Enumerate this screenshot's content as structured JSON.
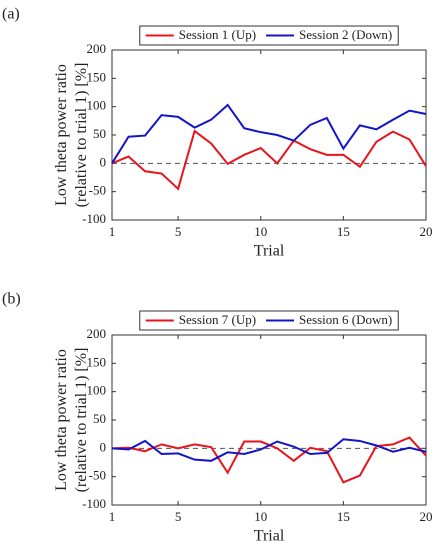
{
  "chart_data": [
    {
      "panel_label": "(a)",
      "type": "line",
      "x": [
        1,
        2,
        3,
        4,
        5,
        6,
        7,
        8,
        9,
        10,
        11,
        12,
        13,
        14,
        15,
        16,
        17,
        18,
        19,
        20
      ],
      "series": [
        {
          "name": "Session 1 (Up)",
          "color": "#e8141c",
          "values": [
            0,
            12,
            -14,
            -18,
            -45,
            57,
            35,
            -1,
            15,
            27,
            0,
            40,
            25,
            15,
            15,
            -6,
            38,
            56,
            42,
            -5
          ]
        },
        {
          "name": "Session 2 (Down)",
          "color": "#1414c8",
          "values": [
            0,
            47,
            49,
            85,
            82,
            63,
            77,
            103,
            62,
            55,
            50,
            40,
            68,
            80,
            26,
            67,
            60,
            77,
            93,
            87
          ]
        }
      ],
      "xlim": [
        1,
        20
      ],
      "xticks": [
        1,
        5,
        10,
        15,
        20
      ],
      "ylim": [
        -100,
        200
      ],
      "yticks": [
        -100,
        -50,
        0,
        50,
        100,
        150,
        200
      ],
      "xlabel": "Trial",
      "ylabel": [
        "Low theta power ratio",
        "(relative to trial 1) [%]"
      ],
      "hline": 0,
      "legend": "top"
    },
    {
      "panel_label": "(b)",
      "type": "line",
      "x": [
        1,
        2,
        3,
        4,
        5,
        6,
        7,
        8,
        9,
        10,
        11,
        12,
        13,
        14,
        15,
        16,
        17,
        18,
        19,
        20
      ],
      "series": [
        {
          "name": "Session 7 (Up)",
          "color": "#e8141c",
          "values": [
            0,
            1,
            -5,
            7,
            0,
            7,
            2,
            -43,
            12,
            12,
            0,
            -22,
            1,
            -5,
            -60,
            -48,
            4,
            7,
            19,
            -13
          ]
        },
        {
          "name": "Session 6 (Down)",
          "color": "#1414c8",
          "values": [
            0,
            -2,
            13,
            -10,
            -9,
            -20,
            -22,
            -7,
            -10,
            -2,
            12,
            3,
            -10,
            -8,
            16,
            13,
            5,
            -6,
            1,
            -6
          ]
        }
      ],
      "xlim": [
        1,
        20
      ],
      "xticks": [
        1,
        5,
        10,
        15,
        20
      ],
      "ylim": [
        -100,
        200
      ],
      "yticks": [
        -100,
        -50,
        0,
        50,
        100,
        150,
        200
      ],
      "xlabel": "Trial",
      "ylabel": [
        "Low theta power ratio",
        "(relative to trial 1) [%]"
      ],
      "hline": 0,
      "legend": "top"
    }
  ]
}
